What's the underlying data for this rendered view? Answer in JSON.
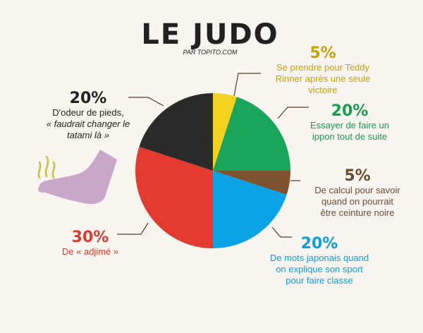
{
  "title": "LE JUDO",
  "subtitle": "PAR TOPITO.COM",
  "colors": {
    "background": "#f8f4ef",
    "ink": "#222222",
    "connector": "#5a3a2a",
    "foot": "#c9a7c9",
    "stink": "#c9c23a"
  },
  "chart_data": {
    "type": "pie",
    "start_angle_deg": 0,
    "direction": "clockwise",
    "slices": [
      {
        "id": "teddy",
        "value": 5,
        "percent_label": "5%",
        "color": "#f2d21f",
        "label_color": "#c9a200",
        "lines": [
          {
            "text": "Se prendre pour Teddy"
          },
          {
            "text": "Rinner après une seule"
          },
          {
            "text": "victoire"
          }
        ]
      },
      {
        "id": "ippon",
        "value": 20,
        "percent_label": "20%",
        "color": "#1aa65a",
        "label_color": "#12a050",
        "lines": [
          {
            "text": "Essayer de faire un"
          },
          {
            "text": "ippon tout de suite"
          }
        ]
      },
      {
        "id": "calcul",
        "value": 5,
        "percent_label": "5%",
        "color": "#7d5330",
        "label_color": "#6e4a2c",
        "lines": [
          {
            "text": "De calcul pour savoir"
          },
          {
            "text": "quand on pourrait"
          },
          {
            "text": "être ceinture noire"
          }
        ]
      },
      {
        "id": "japonais",
        "value": 20,
        "percent_label": "20%",
        "color": "#0aa3e6",
        "label_color": "#0b9edf",
        "lines": [
          {
            "text": "De mots japonais quand"
          },
          {
            "text": "on explique son sport"
          },
          {
            "text": "pour faire classe"
          }
        ]
      },
      {
        "id": "adjime",
        "value": 30,
        "percent_label": "30%",
        "color": "#e53a2f",
        "label_color": "#e03a2e",
        "lines": [
          {
            "text": "De  « adjimé »"
          }
        ]
      },
      {
        "id": "pieds",
        "value": 20,
        "percent_label": "20%",
        "color": "#2b2b2b",
        "label_color": "#222222",
        "lines": [
          {
            "text": "D'odeur de pieds,"
          },
          {
            "text": "« faudrait changer le",
            "italic": true
          },
          {
            "text": "tatami là »",
            "italic": true
          }
        ]
      }
    ]
  }
}
